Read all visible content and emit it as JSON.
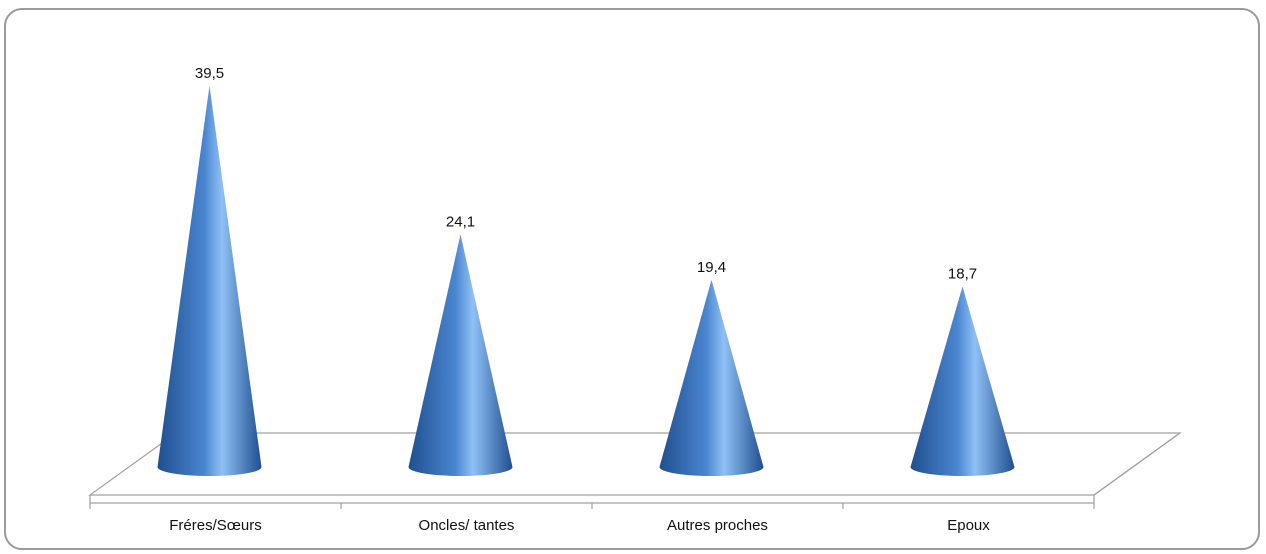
{
  "chart_data": {
    "type": "bar",
    "shape": "cone",
    "categories": [
      "Fréres/Sœurs",
      "Oncles/ tantes",
      "Autres proches",
      "Epoux"
    ],
    "values": [
      39.5,
      24.1,
      19.4,
      18.7
    ],
    "data_labels": [
      "39,5",
      "24,1",
      "19,4",
      "18,7"
    ],
    "title": "",
    "xlabel": "",
    "ylabel": "",
    "ylim": [
      0,
      45
    ],
    "grid": false,
    "legend": "none",
    "colors": {
      "cone_dark": "#1f4f8f",
      "cone_mid": "#4a86d0",
      "cone_light": "#8fc0f5",
      "floor_line": "#a0a0a0"
    }
  }
}
